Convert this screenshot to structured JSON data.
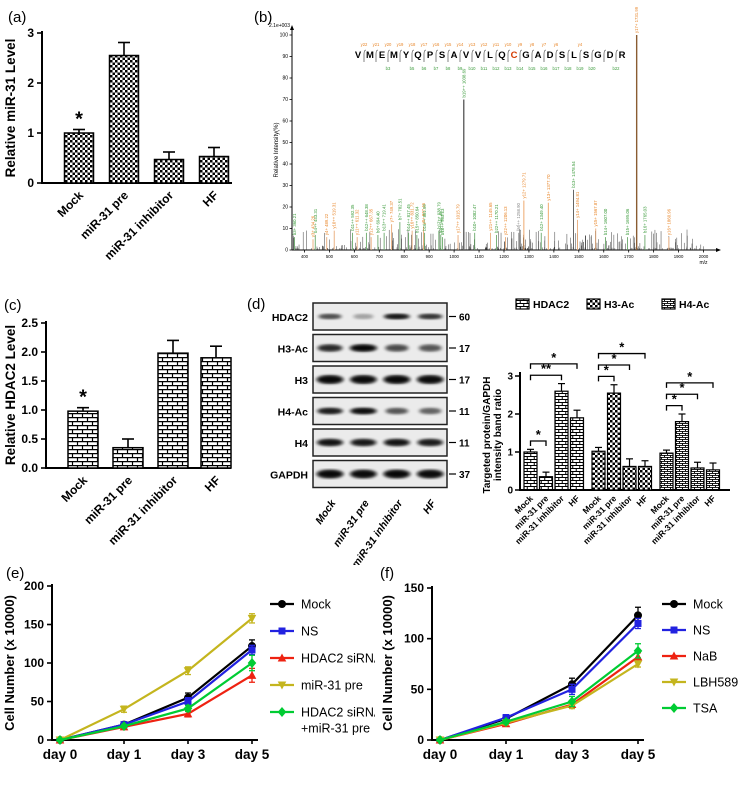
{
  "figure": {
    "background": "#ffffff",
    "panel_labels": [
      "(a)",
      "(b)",
      "(c)",
      "(d)",
      "(e)",
      "(f)"
    ]
  },
  "chart_data": [
    {
      "panel": "(a)",
      "type": "bar",
      "ylabel": "Relative miR-31 Level",
      "categories": [
        "Mock",
        "miR-31 pre",
        "miR-31 inhibitor",
        "HF"
      ],
      "values": [
        1.0,
        2.55,
        0.47,
        0.53
      ],
      "errors": [
        0.07,
        0.26,
        0.15,
        0.18
      ],
      "annotations": [
        "*",
        "",
        "",
        ""
      ],
      "ylim": [
        0,
        3
      ],
      "yticks": [
        0,
        1,
        2,
        3
      ],
      "ytick_labels": [
        "0",
        "1",
        "2",
        "3"
      ],
      "pattern": "checker"
    },
    {
      "panel": "(b)",
      "type": "spectrum",
      "intensity_scale_label": "2.1e+003",
      "ylabel": "Relative  Intensity(%)",
      "xlabel": "m/z",
      "ylim": [
        0,
        100
      ],
      "ytick_step": 10,
      "xlim": [
        400,
        2000
      ],
      "xtick_step": 100,
      "peptide": [
        "V",
        "M",
        "E",
        "M",
        "Y",
        "Q",
        "P",
        "S",
        "A",
        "V",
        "V",
        "L",
        "Q",
        "C",
        "G",
        "A",
        "D",
        "S",
        "L",
        "S",
        "G",
        "D",
        "R"
      ],
      "modified_residue_index": 13,
      "modified_residue_color": "#d43a00",
      "y_ions": [
        "y22",
        "y21",
        "y20",
        "y19",
        "y18",
        "y17",
        "y16",
        "y15",
        "y14",
        "y13",
        "y12",
        "y11",
        "y10",
        "y9",
        "y8",
        "y7",
        "y6",
        null,
        "y4",
        null,
        null,
        null
      ],
      "b_ions": [
        null,
        null,
        "b3",
        null,
        "b5",
        "b6",
        "b7",
        "b8",
        "b9",
        "b10",
        "b11",
        "b12",
        "b13",
        "b14",
        "b15",
        "b16",
        "b17",
        "b18",
        "b19",
        "b20",
        null,
        "b22"
      ],
      "ion_label_colors": {
        "b": "#3a9a3a",
        "y": "#e8862a",
        "n": "#888888"
      },
      "peak_line_colors": {
        "b": "#6aa86a",
        "y": "#e8aa78",
        "n": "#999999"
      },
      "peaks": [
        {
          "mz": 360.21,
          "h": 6,
          "label": "b3+ 360.21",
          "ion": "b"
        },
        {
          "mz": 434.26,
          "h": 5,
          "label": "y3+ 434.26",
          "ion": "y"
        },
        {
          "mz": 443.31,
          "h": 7,
          "label": "b4++ 443.31",
          "ion": "b"
        },
        {
          "mz": 489.22,
          "h": 6,
          "label": "y4+ 489.22",
          "ion": "y"
        },
        {
          "mz": 519.31,
          "h": 9,
          "label": "y10++ 519.31",
          "ion": "y"
        },
        {
          "mz": 592.35,
          "h": 8,
          "label": "b11++ 592.35",
          "ion": "b"
        },
        {
          "mz": 611.32,
          "h": 6,
          "label": "y11++ 611.32",
          "ion": "y"
        },
        {
          "mz": 648.38,
          "h": 8,
          "label": "b12++ 648.38",
          "ion": "b"
        },
        {
          "mz": 667.35,
          "h": 6,
          "label": "y12++ 667.35",
          "ion": "y"
        },
        {
          "mz": 694.4,
          "h": 7,
          "label": "b6+ 694.40",
          "ion": "b"
        },
        {
          "mz": 719.41,
          "h": 8,
          "label": "b13++ 719.41",
          "ion": "b"
        },
        {
          "mz": 749.37,
          "h": 12,
          "label": "y7+ 749.37",
          "ion": "y"
        },
        {
          "mz": 782.51,
          "h": 13,
          "label": "b7+ 782.51",
          "ion": "b"
        },
        {
          "mz": 817.45,
          "h": 8,
          "label": "b14++ 817.45",
          "ion": "b"
        },
        {
          "mz": 831.72,
          "h": 9,
          "label": "y16++ 831.72",
          "ion": "y"
        },
        {
          "mz": 850.64,
          "h": 7,
          "label": "b15++ 850.64",
          "ion": "b"
        },
        {
          "mz": 877.46,
          "h": 11,
          "label": "y8+ 877.46",
          "ion": "y"
        },
        {
          "mz": 881.59,
          "h": 8,
          "label": "b16++ 881.59",
          "ion": "b"
        },
        {
          "mz": 938.79,
          "h": 9,
          "label": "b17++ 938.79",
          "ion": "b"
        },
        {
          "mz": 946.48,
          "h": 7,
          "label": "b8+ 946.48",
          "ion": "b"
        },
        {
          "mz": 953.13,
          "h": 6,
          "label": "b18++ 953.13",
          "ion": "b"
        },
        {
          "mz": 1015.79,
          "h": 7,
          "label": "y17++ 1015.79",
          "ion": "y"
        },
        {
          "mz": 1038.69,
          "h": 70,
          "label": "b19++ 1038.69",
          "ion": "b",
          "line": "#606060"
        },
        {
          "mz": 1082.47,
          "h": 8,
          "label": "b10+ 1082.47",
          "ion": "b"
        },
        {
          "mz": 1145.65,
          "h": 8,
          "label": "y21++ 1145.65",
          "ion": "y"
        },
        {
          "mz": 1170.21,
          "h": 7,
          "label": "b22++ 1170.21",
          "ion": "b"
        },
        {
          "mz": 1206.13,
          "h": 6,
          "label": "y22++ 1206.13",
          "ion": "y"
        },
        {
          "mz": 1258.9,
          "h": 8,
          "label": "[M]++ 1258.90",
          "ion": "n"
        },
        {
          "mz": 1279.71,
          "h": 23,
          "label": "y12+ 1279.71",
          "ion": "y",
          "line": "#eda05e"
        },
        {
          "mz": 1349.4,
          "h": 8,
          "label": "b12+ 1349.40",
          "ion": "b"
        },
        {
          "mz": 1377.7,
          "h": 22,
          "label": "y13+ 1377.70",
          "ion": "y",
          "line": "#eda05e"
        },
        {
          "mz": 1478.54,
          "h": 28,
          "label": "b13+ 1478.54",
          "ion": "b",
          "line": "#555555"
        },
        {
          "mz": 1494.81,
          "h": 14,
          "label": "y14+ 1494.81",
          "ion": "y"
        },
        {
          "mz": 1567.87,
          "h": 10,
          "label": "y15+ 1567.87",
          "ion": "y"
        },
        {
          "mz": 1607.0,
          "h": 6,
          "label": "b14+ 1607.00",
          "ion": "b"
        },
        {
          "mz": 1695.06,
          "h": 6,
          "label": "b15+ 1695.06",
          "ion": "b"
        },
        {
          "mz": 1731.99,
          "h": 100,
          "label": "y17+ 1731.99",
          "ion": "y",
          "line": "#8a5c32"
        },
        {
          "mz": 1765.03,
          "h": 7,
          "label": "b16+ 1765.03",
          "ion": "b"
        },
        {
          "mz": 1860.96,
          "h": 6,
          "label": "y16+ 1860.96",
          "ion": "y"
        }
      ],
      "noise": {
        "count": 300,
        "seed": 7
      }
    },
    {
      "panel": "(c)",
      "type": "bar",
      "ylabel": "Relative HDAC2 Level",
      "categories": [
        "Mock",
        "miR-31 pre",
        "miR-31 inhibitor",
        "HF"
      ],
      "values": [
        0.98,
        0.35,
        1.98,
        1.9
      ],
      "errors": [
        0.06,
        0.15,
        0.22,
        0.2
      ],
      "annotations": [
        "*",
        "",
        "",
        ""
      ],
      "ylim": [
        0,
        2.5
      ],
      "yticks": [
        0,
        0.5,
        1.0,
        1.5,
        2.0,
        2.5
      ],
      "ytick_labels": [
        "0.0",
        "0.5",
        "1.0",
        "1.5",
        "2.0",
        "2.5"
      ],
      "pattern": "brick"
    },
    {
      "panel": "(d)",
      "type": "blot",
      "lanes": [
        "Mock",
        "miR-31 pre",
        "miR-31 inhibitor",
        "HF"
      ],
      "rows": [
        {
          "name": "HDAC2",
          "marker": "60",
          "bands": [
            0.55,
            0.22,
            0.85,
            0.68
          ]
        },
        {
          "name": "H3-Ac",
          "marker": "17",
          "bands": [
            0.72,
            0.95,
            0.55,
            0.5
          ]
        },
        {
          "name": "H3",
          "marker": "17",
          "bands": [
            0.92,
            0.9,
            0.92,
            0.9
          ]
        },
        {
          "name": "H4-Ac",
          "marker": "11",
          "bands": [
            0.8,
            0.9,
            0.5,
            0.45
          ]
        },
        {
          "name": "H4",
          "marker": "11",
          "bands": [
            0.85,
            0.82,
            0.85,
            0.8
          ]
        },
        {
          "name": "GAPDH",
          "marker": "37",
          "bands": [
            0.92,
            0.9,
            0.92,
            0.9
          ]
        }
      ]
    },
    {
      "panel": "(d)",
      "type": "grouped_bar",
      "ylabel_lines": [
        "Targeted protein/GAPDH",
        "intensity band ratio"
      ],
      "categories": [
        "Mock",
        "miR-31 pre",
        "miR-31 inhibitor",
        "HF"
      ],
      "ylim": [
        0,
        3
      ],
      "yticks": [
        0,
        1,
        2,
        3
      ],
      "ytick_labels": [
        "0",
        "1",
        "2",
        "3"
      ],
      "series": [
        {
          "name": "HDAC2",
          "pattern": "brick2",
          "values": [
            1.0,
            0.35,
            2.6,
            1.9
          ],
          "errors": [
            0.07,
            0.12,
            0.2,
            0.2
          ],
          "sig": [
            "*",
            "**",
            "*"
          ]
        },
        {
          "name": "H3-Ac",
          "pattern": "checker",
          "values": [
            1.02,
            2.55,
            0.62,
            0.62
          ],
          "errors": [
            0.1,
            0.22,
            0.2,
            0.15
          ],
          "sig": [
            "*",
            "*",
            "*"
          ]
        },
        {
          "name": "H4-Ac",
          "pattern": "hlines",
          "values": [
            0.97,
            1.8,
            0.58,
            0.53
          ],
          "errors": [
            0.08,
            0.2,
            0.15,
            0.18
          ],
          "sig": [
            "*",
            "*",
            "*"
          ]
        }
      ]
    },
    {
      "panel": "(e)",
      "type": "line",
      "ylabel": "Cell Number (x 10000)",
      "x_labels": [
        "day 0",
        "day 1",
        "day 3",
        "day 5"
      ],
      "ylim": [
        0,
        200
      ],
      "yticks": [
        0,
        50,
        100,
        150,
        200
      ],
      "ytick_labels": [
        "0",
        "50",
        "100",
        "150",
        "200"
      ],
      "series": [
        {
          "name_lines": [
            "Mock"
          ],
          "color": "#000000",
          "marker": "circle",
          "values": [
            0,
            20,
            55,
            122
          ],
          "errors": [
            1,
            3,
            6,
            8
          ]
        },
        {
          "name_lines": [
            "NS"
          ],
          "color": "#2222e0",
          "marker": "square",
          "values": [
            0,
            20,
            50,
            117
          ],
          "errors": [
            1,
            3,
            5,
            6
          ]
        },
        {
          "name_lines": [
            "HDAC2 siRNA"
          ],
          "color": "#ee2211",
          "marker": "triangle",
          "values": [
            0,
            17,
            34,
            84
          ],
          "errors": [
            1,
            2,
            4,
            9
          ]
        },
        {
          "name_lines": [
            "miR-31 pre"
          ],
          "color": "#c4b51e",
          "marker": "triangle-down",
          "values": [
            0,
            40,
            90,
            158
          ],
          "errors": [
            1,
            4,
            5,
            6
          ]
        },
        {
          "name_lines": [
            "HDAC2 siRNA",
            "+miR-31 pre"
          ],
          "color": "#00cc33",
          "marker": "diamond",
          "values": [
            0,
            18,
            41,
            100
          ],
          "errors": [
            1,
            2,
            4,
            10
          ]
        }
      ]
    },
    {
      "panel": "(f)",
      "type": "line",
      "ylabel": "Cell Number (x 10000)",
      "x_labels": [
        "day 0",
        "day 1",
        "day 3",
        "day 5"
      ],
      "ylim": [
        0,
        150
      ],
      "yticks": [
        0,
        50,
        100,
        150
      ],
      "ytick_labels": [
        "0",
        "50",
        "100",
        "150"
      ],
      "series": [
        {
          "name_lines": [
            "Mock"
          ],
          "color": "#000000",
          "marker": "circle",
          "values": [
            0,
            21,
            55,
            123
          ],
          "errors": [
            1,
            2,
            6,
            8
          ]
        },
        {
          "name_lines": [
            "NS"
          ],
          "color": "#2222e0",
          "marker": "square",
          "values": [
            0,
            22,
            50,
            115
          ],
          "errors": [
            1,
            3,
            5,
            5
          ]
        },
        {
          "name_lines": [
            "NaB"
          ],
          "color": "#ee2211",
          "marker": "triangle",
          "values": [
            0,
            16,
            35,
            82
          ],
          "errors": [
            1,
            2,
            3,
            4
          ]
        },
        {
          "name_lines": [
            "LBH589"
          ],
          "color": "#c4b51e",
          "marker": "triangle-down",
          "values": [
            0,
            17,
            34,
            75
          ],
          "errors": [
            1,
            2,
            3,
            3
          ]
        },
        {
          "name_lines": [
            "TSA"
          ],
          "color": "#00cc33",
          "marker": "diamond",
          "values": [
            0,
            18,
            38,
            88
          ],
          "errors": [
            1,
            2,
            5,
            7
          ]
        }
      ]
    }
  ]
}
